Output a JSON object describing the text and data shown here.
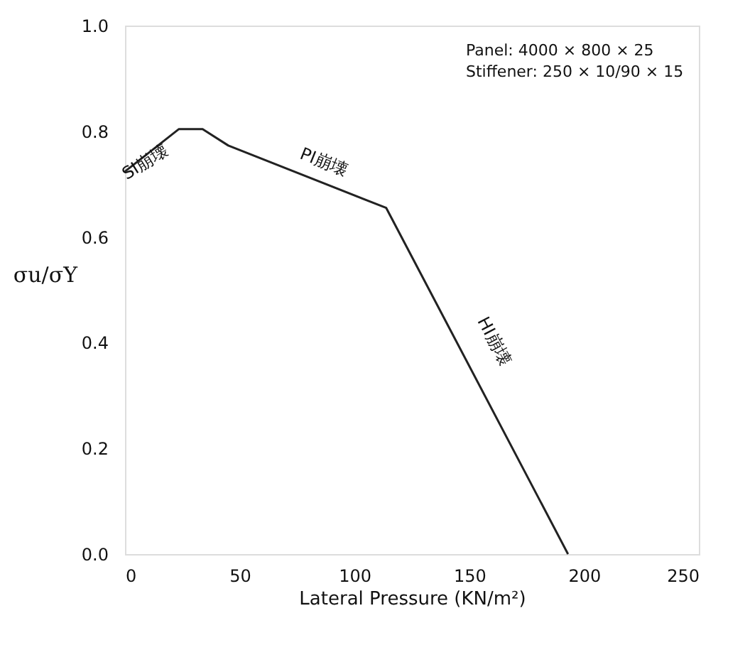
{
  "chart_data": {
    "type": "line",
    "xlabel": "Lateral Pressure (KN/m²)",
    "ylabel": "σu/σY",
    "x": [
      0,
      23.4,
      33.8,
      45,
      113.8,
      193
    ],
    "series": [
      {
        "color": "#222222",
        "values": [
          0.724,
          0.804,
          0.804,
          0.773,
          0.655,
          0.0
        ]
      }
    ],
    "xlim": [
      0,
      250
    ],
    "xticks": [
      0,
      50,
      100,
      150,
      200,
      250
    ],
    "ylim": [
      0,
      1.0
    ],
    "yticks": [
      {
        "value": 0,
        "label": "0.0"
      },
      {
        "value": 0.2,
        "label": "0.2"
      },
      {
        "value": 0.4,
        "label": "0.4"
      },
      {
        "value": 0.6,
        "label": "0.6"
      },
      {
        "value": 0.8,
        "label": "0.8"
      },
      {
        "value": 1.0,
        "label": "1.0"
      }
    ],
    "grid": false,
    "marker": "none",
    "line_style": "solid",
    "annotations": [
      "SI崩壊",
      "PI崩壊",
      "HI崩壊",
      "Panel: 4000 × 800 × 25",
      "Stiffener: 250 × 10/90 × 15"
    ]
  }
}
